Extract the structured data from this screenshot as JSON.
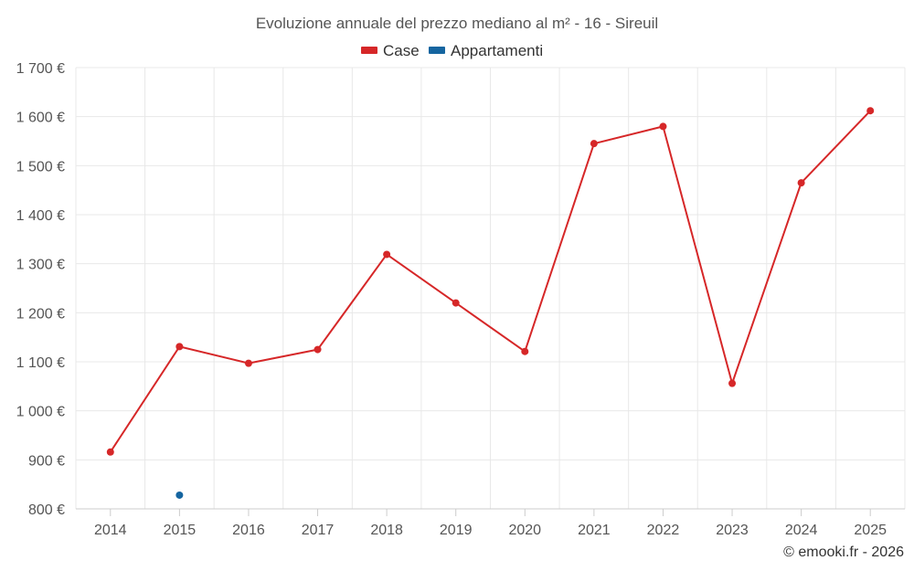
{
  "chart_data": {
    "type": "line",
    "title": "Evoluzione annuale del prezzo mediano al m² - 16 - Sireuil",
    "categories": [
      "2014",
      "2015",
      "2016",
      "2017",
      "2018",
      "2019",
      "2020",
      "2021",
      "2022",
      "2023",
      "2024",
      "2025"
    ],
    "series": [
      {
        "name": "Case",
        "color": "#d62728",
        "values": [
          916,
          1131,
          1097,
          1125,
          1319,
          1220,
          1121,
          1545,
          1580,
          1056,
          1465,
          1612
        ]
      },
      {
        "name": "Appartamenti",
        "color": "#1565a0",
        "values": [
          null,
          828,
          null,
          null,
          null,
          null,
          null,
          null,
          null,
          null,
          null,
          null
        ]
      }
    ],
    "ylim": [
      800,
      1700
    ],
    "yticks": [
      800,
      900,
      1000,
      1100,
      1200,
      1300,
      1400,
      1500,
      1600,
      1700
    ],
    "ytick_labels": [
      "800 €",
      "900 €",
      "1 000 €",
      "1 100 €",
      "1 200 €",
      "1 300 €",
      "1 400 €",
      "1 500 €",
      "1 600 €",
      "1 700 €"
    ],
    "grid": true,
    "legend": "top-center",
    "xlabel": "",
    "ylabel": ""
  },
  "credit": "© emooki.fr - 2026"
}
